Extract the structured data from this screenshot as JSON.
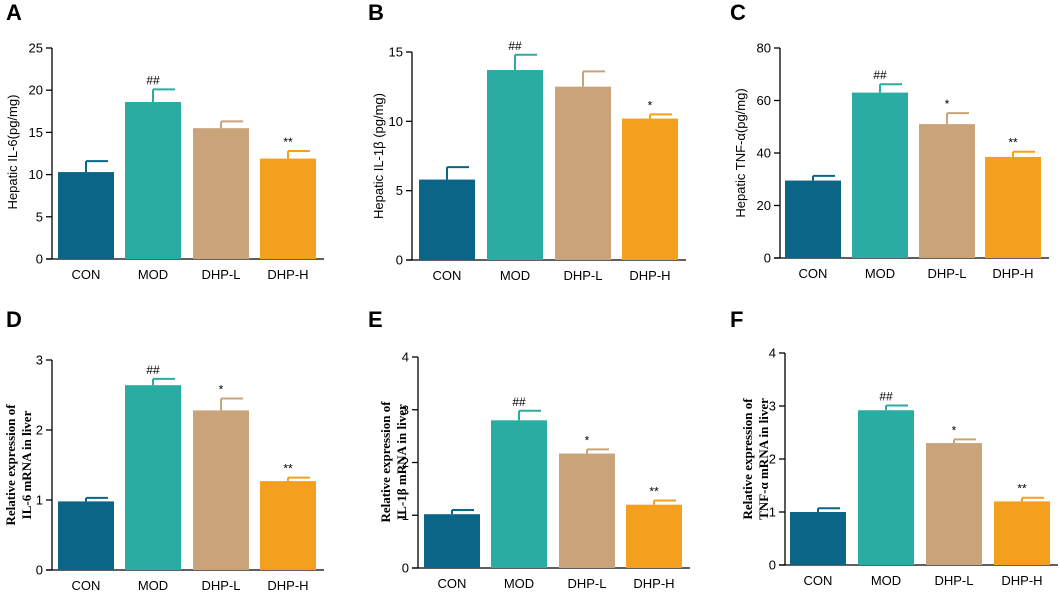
{
  "colors": {
    "CON": "#0b6587",
    "MOD": "#2aaca3",
    "DHP-L": "#c9a47a",
    "DHP-H": "#f2a01e",
    "axis": "#000000"
  },
  "chart_data": [
    {
      "panel": "A",
      "type": "bar",
      "categories": [
        "CON",
        "MOD",
        "DHP-L",
        "DHP-H"
      ],
      "values": [
        10.3,
        18.6,
        15.5,
        11.9
      ],
      "errors": [
        1.3,
        1.5,
        0.8,
        0.9
      ],
      "significance": [
        "",
        "##",
        "",
        "**"
      ],
      "ylabel": "Hepatic IL-6(pg/mg)",
      "ylabel_lines": [],
      "ylim": [
        0,
        25
      ],
      "yticks": [
        0,
        5,
        10,
        15,
        20,
        25
      ],
      "ytick_labels": [
        "0",
        "5",
        "10",
        "15",
        "20",
        "25"
      ]
    },
    {
      "panel": "B",
      "type": "bar",
      "categories": [
        "CON",
        "MOD",
        "DHP-L",
        "DHP-H"
      ],
      "values": [
        5.8,
        13.7,
        12.5,
        10.2
      ],
      "errors": [
        0.9,
        1.1,
        1.1,
        0.3
      ],
      "significance": [
        "",
        "##",
        "",
        "*"
      ],
      "ylabel": "Hepatic IL-1β (pg/mg)",
      "ylabel_lines": [],
      "ylim": [
        0,
        15
      ],
      "yticks": [
        0,
        5,
        10,
        15
      ],
      "ytick_labels": [
        "0",
        "5",
        "10",
        "15"
      ]
    },
    {
      "panel": "C",
      "type": "bar",
      "categories": [
        "CON",
        "MOD",
        "DHP-L",
        "DHP-H"
      ],
      "values": [
        29.5,
        63.0,
        51.0,
        38.5
      ],
      "errors": [
        1.8,
        3.2,
        4.2,
        2.0
      ],
      "significance": [
        "",
        "##",
        "*",
        "**"
      ],
      "ylabel": "Hepatic TNF-α(pg/mg)",
      "ylabel_lines": [],
      "ylim": [
        0,
        80
      ],
      "yticks": [
        0,
        20,
        40,
        60,
        80
      ],
      "ytick_labels": [
        "0",
        "20",
        "40",
        "60",
        "80"
      ]
    },
    {
      "panel": "D",
      "type": "bar",
      "categories": [
        "CON",
        "MOD",
        "DHP-L",
        "DHP-H"
      ],
      "values": [
        0.98,
        2.64,
        2.28,
        1.27
      ],
      "errors": [
        0.05,
        0.09,
        0.17,
        0.05
      ],
      "significance": [
        "",
        "##",
        "*",
        "**"
      ],
      "ylabel": "",
      "ylabel_lines": [
        "Relative expression of",
        "IL-6 mRNA in liver"
      ],
      "ylim": [
        0,
        3
      ],
      "yticks": [
        0,
        1,
        2,
        3
      ],
      "ytick_labels": [
        "0",
        "1",
        "2",
        "3"
      ]
    },
    {
      "panel": "E",
      "type": "bar",
      "categories": [
        "CON",
        "MOD",
        "DHP-L",
        "DHP-H"
      ],
      "values": [
        1.02,
        2.8,
        2.17,
        1.2
      ],
      "errors": [
        0.08,
        0.18,
        0.08,
        0.08
      ],
      "significance": [
        "",
        "##",
        "*",
        "**"
      ],
      "ylabel": "",
      "ylabel_lines": [
        "Relative expression of",
        "IL-1β mRNA in liver"
      ],
      "ylim": [
        0,
        4
      ],
      "yticks": [
        0,
        1,
        2,
        3,
        4
      ],
      "ytick_labels": [
        "0",
        "1",
        "2",
        "3",
        "4"
      ]
    },
    {
      "panel": "F",
      "type": "bar",
      "categories": [
        "CON",
        "MOD",
        "DHP-L",
        "DHP-H"
      ],
      "values": [
        1.0,
        2.92,
        2.3,
        1.2
      ],
      "errors": [
        0.07,
        0.09,
        0.07,
        0.07
      ],
      "significance": [
        "",
        "##",
        "*",
        "**"
      ],
      "ylabel": "",
      "ylabel_lines": [
        "Relative expression of",
        "TNF-α mRNA in liver"
      ],
      "ylim": [
        0,
        4
      ],
      "yticks": [
        0,
        1,
        2,
        3,
        4
      ],
      "ytick_labels": [
        "0",
        "1",
        "2",
        "3",
        "4"
      ]
    }
  ]
}
